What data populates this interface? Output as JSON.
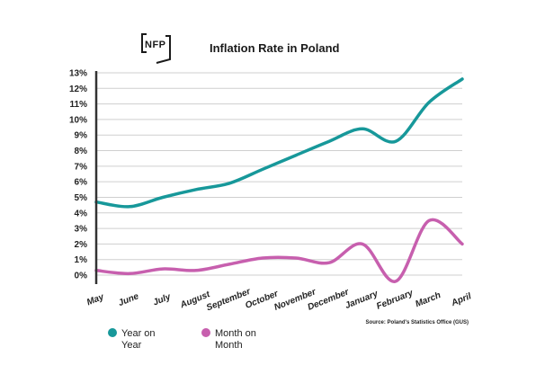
{
  "logo": {
    "text": "NFP"
  },
  "chart_data": {
    "type": "line",
    "title": "Inflation Rate in Poland",
    "source": "Source: Poland's Statistics Office (GUS)",
    "categories": [
      "May",
      "June",
      "July",
      "August",
      "September",
      "October",
      "November",
      "December",
      "January",
      "February",
      "March",
      "April"
    ],
    "y_tick_labels": [
      "0%",
      "1%",
      "2%",
      "3%",
      "4%",
      "5%",
      "6%",
      "7%",
      "8%",
      "9%",
      "10%",
      "11%",
      "12%",
      "13%"
    ],
    "ylim": [
      0,
      13
    ],
    "grid": true,
    "legend_position": "bottom-left",
    "series": [
      {
        "name": "Year on Year",
        "color": "#17989a",
        "values": [
          4.7,
          4.4,
          5.0,
          5.5,
          5.9,
          6.8,
          7.7,
          8.6,
          9.4,
          8.6,
          11.1,
          12.6
        ]
      },
      {
        "name": "Month on Month",
        "color": "#c75fae",
        "values": [
          0.3,
          0.1,
          0.4,
          0.3,
          0.7,
          1.1,
          1.1,
          0.8,
          2.0,
          -0.4,
          3.5,
          2.0
        ]
      }
    ]
  }
}
